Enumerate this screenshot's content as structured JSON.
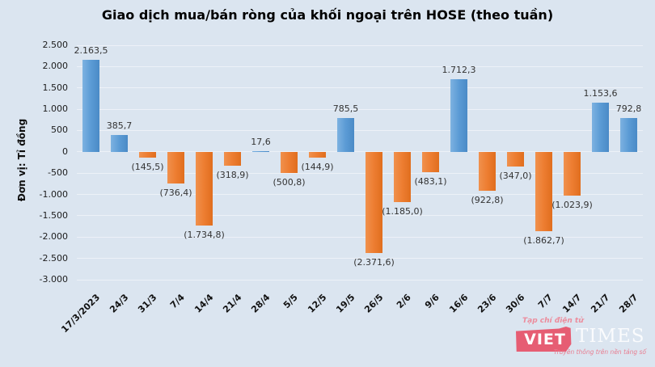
{
  "title": "Giao dịch mua/bán ròng của khối ngoại trên HOSE (theo tuần)",
  "y_axis_title": "Đơn vị: Tỉ đồng",
  "colors": {
    "background": "#dbe5f0",
    "positive_bar": "#5b9bd5",
    "negative_bar": "#ed7d31",
    "gridline": "#edf1f8",
    "label_text": "#333333",
    "watermark_red": "#e65d73"
  },
  "chart_data": {
    "type": "bar",
    "title": "Giao dịch mua/bán ròng của khối ngoại trên HOSE (theo tuần)",
    "xlabel": "",
    "ylabel": "Đơn vị: Tỉ đồng",
    "categories": [
      "17/3/2023",
      "24/3",
      "31/3",
      "7/4",
      "14/4",
      "21/4",
      "28/4",
      "5/5",
      "12/5",
      "19/5",
      "26/5",
      "2/6",
      "9/6",
      "16/6",
      "23/6",
      "30/6",
      "7/7",
      "14/7",
      "21/7",
      "28/7"
    ],
    "values": [
      2163.5,
      385.7,
      -145.5,
      -736.4,
      -1734.8,
      -318.9,
      17.6,
      -500.8,
      -144.9,
      785.5,
      -2371.6,
      -1185.0,
      -483.1,
      1712.3,
      -922.8,
      -347.0,
      -1862.7,
      -1023.9,
      1153.6,
      792.8
    ],
    "value_labels": [
      "2.163,5",
      "385,7",
      "(145,5)",
      "(736,4)",
      "(1.734,8)",
      "(318,9)",
      "17,6",
      "(500,8)",
      "(144,9)",
      "785,5",
      "(2.371,6)",
      "(1.185,0)",
      "(483,1)",
      "1.712,3",
      "(922,8)",
      "(347,0)",
      "(1.862,7)",
      "(1.023,9)",
      "1.153,6",
      "792,8"
    ],
    "ylim": [
      -3000,
      2500
    ],
    "ytick_step": 500,
    "ytick_values": [
      2500,
      2000,
      1500,
      1000,
      500,
      0,
      -500,
      -1000,
      -1500,
      -2000,
      -2500,
      -3000
    ],
    "ytick_labels": [
      "2.500",
      "2.000",
      "1.500",
      "1.000",
      "500",
      "0",
      "-500",
      "-1.000",
      "-1.500",
      "-2.000",
      "-2.500",
      "-3.000"
    ],
    "grid": true,
    "legend": "none",
    "positive_color": "#5b9bd5",
    "negative_color": "#ed7d31"
  },
  "watermark": {
    "top_tagline": "Tạp chí điện tử",
    "brand_primary": "VIET",
    "brand_secondary": "TIMES",
    "bottom_tagline": "Truyền thông trên nền tảng số"
  }
}
